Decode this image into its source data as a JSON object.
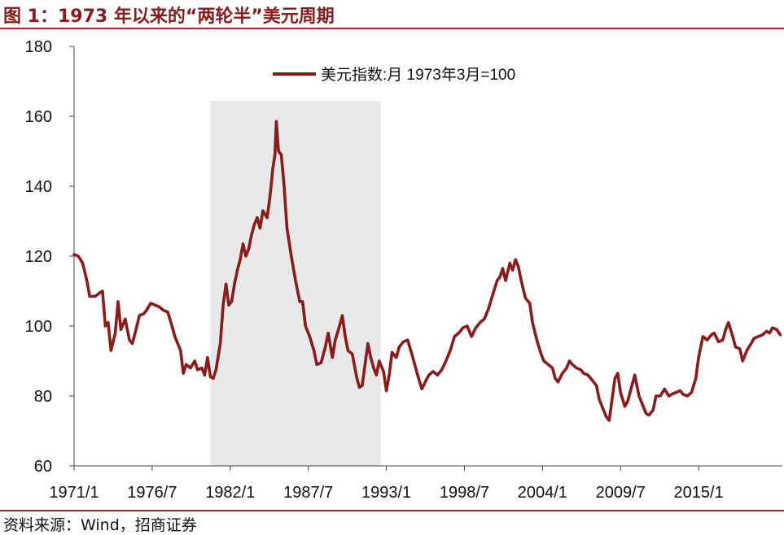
{
  "header": {
    "title": "图 1：1973 年以来的“两轮半”美元周期"
  },
  "footer": {
    "source": "资料来源：Wind，招商证券"
  },
  "colors": {
    "accent": "#b22222",
    "series": "#8b1a1a",
    "shade": "#e9e9e9"
  },
  "chart_data": {
    "type": "line",
    "title": "",
    "xlabel": "",
    "ylabel": "",
    "ylim": [
      60,
      180
    ],
    "yticks": [
      60,
      80,
      100,
      120,
      140,
      160,
      180
    ],
    "xlim": [
      1971.0,
      2020.9
    ],
    "xticks": [
      {
        "label": "1971/1",
        "x": 1971.0
      },
      {
        "label": "1976/7",
        "x": 1976.5
      },
      {
        "label": "1982/1",
        "x": 1982.0
      },
      {
        "label": "1987/7",
        "x": 1987.5
      },
      {
        "label": "1993/1",
        "x": 1993.0
      },
      {
        "label": "1998/7",
        "x": 1998.5
      },
      {
        "label": "2004/1",
        "x": 2004.0
      },
      {
        "label": "2009/7",
        "x": 2009.5
      },
      {
        "label": "2015/1",
        "x": 2015.0
      }
    ],
    "grid": false,
    "legend": {
      "position": "top-center",
      "label": "美元指数:月 1973年3月=100"
    },
    "shaded_regions": [
      {
        "from": 1980.6,
        "to": 1992.6
      }
    ],
    "series": [
      {
        "name": "美元指数:月 1973年3月=100",
        "points": [
          [
            1971.0,
            120.5
          ],
          [
            1971.3,
            120.0
          ],
          [
            1971.6,
            118.0
          ],
          [
            1971.9,
            113.0
          ],
          [
            1972.1,
            108.5
          ],
          [
            1972.5,
            108.5
          ],
          [
            1972.8,
            109.5
          ],
          [
            1973.0,
            110.0
          ],
          [
            1973.2,
            100.0
          ],
          [
            1973.4,
            101.0
          ],
          [
            1973.6,
            93.0
          ],
          [
            1973.9,
            98.0
          ],
          [
            1974.1,
            107.0
          ],
          [
            1974.3,
            99.0
          ],
          [
            1974.6,
            102.0
          ],
          [
            1974.9,
            96.0
          ],
          [
            1975.1,
            95.0
          ],
          [
            1975.3,
            98.0
          ],
          [
            1975.6,
            103.0
          ],
          [
            1975.9,
            103.5
          ],
          [
            1976.1,
            104.5
          ],
          [
            1976.4,
            106.5
          ],
          [
            1976.7,
            106.0
          ],
          [
            1977.0,
            105.5
          ],
          [
            1977.3,
            104.5
          ],
          [
            1977.6,
            104.0
          ],
          [
            1977.9,
            100.0
          ],
          [
            1978.1,
            97.0
          ],
          [
            1978.3,
            95.0
          ],
          [
            1978.5,
            93.0
          ],
          [
            1978.7,
            86.5
          ],
          [
            1978.9,
            89.0
          ],
          [
            1979.2,
            88.0
          ],
          [
            1979.5,
            90.0
          ],
          [
            1979.7,
            87.5
          ],
          [
            1980.0,
            88.0
          ],
          [
            1980.2,
            86.0
          ],
          [
            1980.4,
            91.0
          ],
          [
            1980.6,
            85.5
          ],
          [
            1980.8,
            85.0
          ],
          [
            1981.0,
            87.5
          ],
          [
            1981.3,
            95.0
          ],
          [
            1981.5,
            106.0
          ],
          [
            1981.7,
            112.0
          ],
          [
            1981.9,
            106.0
          ],
          [
            1982.1,
            107.0
          ],
          [
            1982.3,
            112.0
          ],
          [
            1982.5,
            116.0
          ],
          [
            1982.7,
            119.0
          ],
          [
            1982.9,
            123.5
          ],
          [
            1983.1,
            120.0
          ],
          [
            1983.3,
            122.0
          ],
          [
            1983.5,
            126.0
          ],
          [
            1983.7,
            129.0
          ],
          [
            1983.9,
            131.0
          ],
          [
            1984.1,
            128.0
          ],
          [
            1984.3,
            133.0
          ],
          [
            1984.6,
            131.0
          ],
          [
            1984.8,
            137.0
          ],
          [
            1985.0,
            145.0
          ],
          [
            1985.15,
            149.0
          ],
          [
            1985.25,
            158.5
          ],
          [
            1985.4,
            150.0
          ],
          [
            1985.6,
            149.0
          ],
          [
            1985.8,
            140.0
          ],
          [
            1986.0,
            128.0
          ],
          [
            1986.3,
            120.0
          ],
          [
            1986.6,
            113.0
          ],
          [
            1986.9,
            107.0
          ],
          [
            1987.1,
            107.0
          ],
          [
            1987.3,
            100.0
          ],
          [
            1987.6,
            97.0
          ],
          [
            1987.9,
            93.0
          ],
          [
            1988.1,
            89.0
          ],
          [
            1988.4,
            89.5
          ],
          [
            1988.7,
            94.0
          ],
          [
            1988.9,
            98.0
          ],
          [
            1989.2,
            91.0
          ],
          [
            1989.4,
            96.0
          ],
          [
            1989.7,
            100.0
          ],
          [
            1989.9,
            103.0
          ],
          [
            1990.1,
            97.0
          ],
          [
            1990.3,
            93.0
          ],
          [
            1990.6,
            92.0
          ],
          [
            1990.9,
            85.5
          ],
          [
            1991.1,
            82.5
          ],
          [
            1991.3,
            83.0
          ],
          [
            1991.5,
            89.0
          ],
          [
            1991.7,
            95.0
          ],
          [
            1991.9,
            91.0
          ],
          [
            1992.1,
            88.0
          ],
          [
            1992.3,
            86.0
          ],
          [
            1992.5,
            90.0
          ],
          [
            1992.8,
            87.0
          ],
          [
            1993.0,
            81.5
          ],
          [
            1993.2,
            86.0
          ],
          [
            1993.4,
            92.5
          ],
          [
            1993.7,
            91.0
          ],
          [
            1993.9,
            94.0
          ],
          [
            1994.2,
            95.5
          ],
          [
            1994.5,
            96.0
          ],
          [
            1994.8,
            92.0
          ],
          [
            1995.0,
            89.0
          ],
          [
            1995.2,
            86.0
          ],
          [
            1995.5,
            82.0
          ],
          [
            1995.8,
            84.5
          ],
          [
            1996.0,
            86.0
          ],
          [
            1996.3,
            87.0
          ],
          [
            1996.6,
            86.0
          ],
          [
            1996.9,
            87.5
          ],
          [
            1997.2,
            90.0
          ],
          [
            1997.5,
            93.0
          ],
          [
            1997.8,
            97.0
          ],
          [
            1998.1,
            98.0
          ],
          [
            1998.4,
            99.5
          ],
          [
            1998.7,
            100.0
          ],
          [
            1999.0,
            97.0
          ],
          [
            1999.3,
            99.5
          ],
          [
            1999.6,
            101.0
          ],
          [
            1999.9,
            102.0
          ],
          [
            2000.2,
            105.0
          ],
          [
            2000.5,
            109.0
          ],
          [
            2000.8,
            113.0
          ],
          [
            2001.0,
            114.0
          ],
          [
            2001.2,
            116.5
          ],
          [
            2001.4,
            113.0
          ],
          [
            2001.7,
            118.0
          ],
          [
            2001.9,
            116.0
          ],
          [
            2002.1,
            119.0
          ],
          [
            2002.3,
            117.0
          ],
          [
            2002.5,
            113.0
          ],
          [
            2002.8,
            108.0
          ],
          [
            2003.1,
            106.5
          ],
          [
            2003.3,
            101.0
          ],
          [
            2003.6,
            96.0
          ],
          [
            2003.9,
            92.0
          ],
          [
            2004.1,
            90.0
          ],
          [
            2004.4,
            89.0
          ],
          [
            2004.7,
            88.0
          ],
          [
            2004.9,
            85.0
          ],
          [
            2005.1,
            84.0
          ],
          [
            2005.4,
            86.5
          ],
          [
            2005.7,
            88.0
          ],
          [
            2005.9,
            90.0
          ],
          [
            2006.1,
            89.0
          ],
          [
            2006.4,
            88.0
          ],
          [
            2006.7,
            87.5
          ],
          [
            2006.9,
            86.5
          ],
          [
            2007.2,
            86.0
          ],
          [
            2007.5,
            84.5
          ],
          [
            2007.8,
            83.0
          ],
          [
            2008.0,
            79.0
          ],
          [
            2008.3,
            76.0
          ],
          [
            2008.5,
            74.0
          ],
          [
            2008.7,
            73.0
          ],
          [
            2008.9,
            79.0
          ],
          [
            2009.1,
            85.0
          ],
          [
            2009.3,
            86.5
          ],
          [
            2009.5,
            81.0
          ],
          [
            2009.8,
            77.0
          ],
          [
            2010.0,
            78.5
          ],
          [
            2010.3,
            83.0
          ],
          [
            2010.5,
            86.0
          ],
          [
            2010.8,
            80.0
          ],
          [
            2011.0,
            78.0
          ],
          [
            2011.3,
            75.0
          ],
          [
            2011.5,
            74.5
          ],
          [
            2011.8,
            76.0
          ],
          [
            2012.0,
            80.0
          ],
          [
            2012.3,
            80.0
          ],
          [
            2012.6,
            82.0
          ],
          [
            2012.9,
            80.0
          ],
          [
            2013.1,
            80.5
          ],
          [
            2013.4,
            81.0
          ],
          [
            2013.7,
            81.5
          ],
          [
            2013.9,
            80.5
          ],
          [
            2014.2,
            80.0
          ],
          [
            2014.5,
            81.0
          ],
          [
            2014.8,
            85.0
          ],
          [
            2015.0,
            91.0
          ],
          [
            2015.3,
            97.0
          ],
          [
            2015.6,
            96.0
          ],
          [
            2015.9,
            97.5
          ],
          [
            2016.1,
            98.0
          ],
          [
            2016.4,
            95.5
          ],
          [
            2016.7,
            96.0
          ],
          [
            2016.9,
            99.0
          ],
          [
            2017.1,
            101.0
          ],
          [
            2017.4,
            97.0
          ],
          [
            2017.6,
            94.0
          ],
          [
            2017.9,
            93.5
          ],
          [
            2018.1,
            90.0
          ],
          [
            2018.4,
            93.0
          ],
          [
            2018.7,
            95.0
          ],
          [
            2018.9,
            96.5
          ],
          [
            2019.2,
            97.0
          ],
          [
            2019.5,
            97.5
          ],
          [
            2019.8,
            98.5
          ],
          [
            2020.0,
            98.0
          ],
          [
            2020.2,
            99.5
          ],
          [
            2020.5,
            99.0
          ],
          [
            2020.75,
            97.5
          ]
        ]
      }
    ]
  }
}
